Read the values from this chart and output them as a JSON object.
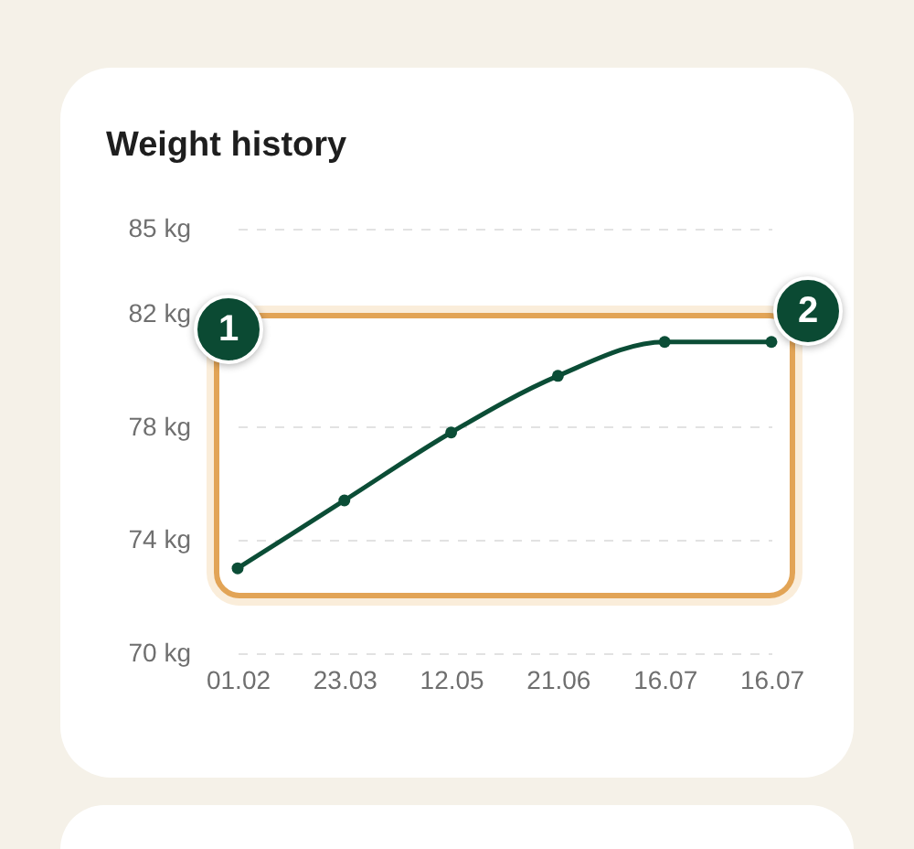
{
  "chart_data": {
    "type": "line",
    "title": "Weight history",
    "categories": [
      "01.02",
      "23.03",
      "12.05",
      "21.06",
      "16.07",
      "16.07"
    ],
    "series": [
      {
        "color": "#0b4d36",
        "values": [
          73.0,
          75.4,
          77.8,
          79.8,
          81.0,
          81.0
        ]
      }
    ],
    "ylim": [
      70,
      85
    ],
    "yticks": [
      {
        "value": 70,
        "label": "70 kg"
      },
      {
        "value": 74,
        "label": "74 kg"
      },
      {
        "value": 78,
        "label": "78 kg"
      },
      {
        "value": 82,
        "label": "82 kg"
      },
      {
        "value": 85,
        "label": "85 kg"
      }
    ],
    "grid": "y",
    "marker": "circle",
    "line_style": "solid",
    "annotations": [
      "1",
      "2"
    ]
  }
}
